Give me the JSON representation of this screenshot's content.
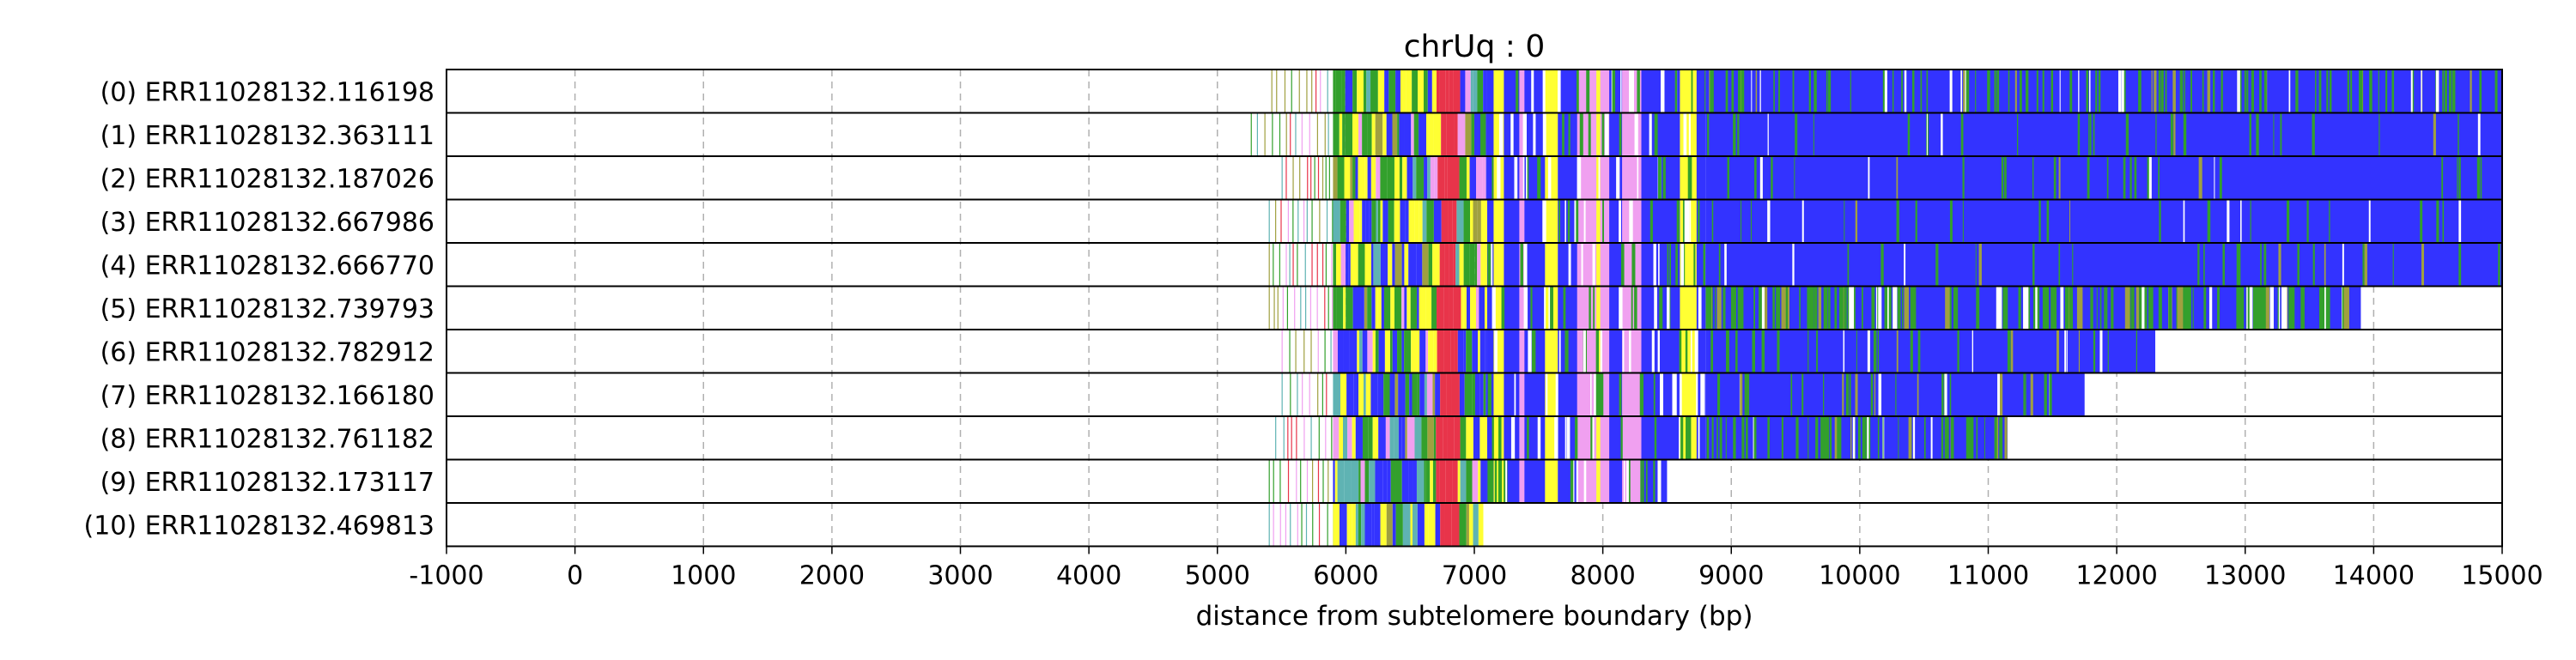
{
  "chart_data": {
    "type": "heatmap",
    "title": "chrUq : 0",
    "xlabel": "distance from subtelomere boundary (bp)",
    "xlim": [
      -1000,
      15000
    ],
    "xticks": [
      -1000,
      0,
      1000,
      2000,
      3000,
      4000,
      5000,
      6000,
      7000,
      8000,
      9000,
      10000,
      11000,
      12000,
      13000,
      14000,
      15000
    ],
    "grid_x": true,
    "colors": {
      "blue": "#3333ff",
      "yellow": "#ffff33",
      "green": "#33a02c",
      "pink": "#f0a0f0",
      "red": "#e8344a",
      "teal": "#5fb3b3",
      "olive": "#a0a040",
      "white": "#ffffff"
    },
    "reads": [
      {
        "label": "(0) ERR11028132.116198",
        "start": 5420,
        "end": 15000,
        "tail": "mixed"
      },
      {
        "label": "(1) ERR11028132.363111",
        "start": 5260,
        "end": 15000,
        "tail": "blue"
      },
      {
        "label": "(2) ERR11028132.187026",
        "start": 5500,
        "end": 15000,
        "tail": "blue"
      },
      {
        "label": "(3) ERR11028132.667986",
        "start": 5400,
        "end": 15000,
        "tail": "blue"
      },
      {
        "label": "(4) ERR11028132.666770",
        "start": 5400,
        "end": 15000,
        "tail": "blue"
      },
      {
        "label": "(5) ERR11028132.739793",
        "start": 5400,
        "end": 13900,
        "tail": "green"
      },
      {
        "label": "(6) ERR11028132.782912",
        "start": 5500,
        "end": 12300,
        "tail": "blue"
      },
      {
        "label": "(7) ERR11028132.166180",
        "start": 5500,
        "end": 11750,
        "tail": "blue"
      },
      {
        "label": "(8) ERR11028132.761182",
        "start": 5450,
        "end": 11150,
        "tail": "bluegreen"
      },
      {
        "label": "(9) ERR11028132.173117",
        "start": 5400,
        "end": 8500,
        "tail": "short"
      },
      {
        "label": "(10) ERR11028132.469813",
        "start": 5400,
        "end": 7070,
        "tail": "short"
      }
    ]
  }
}
